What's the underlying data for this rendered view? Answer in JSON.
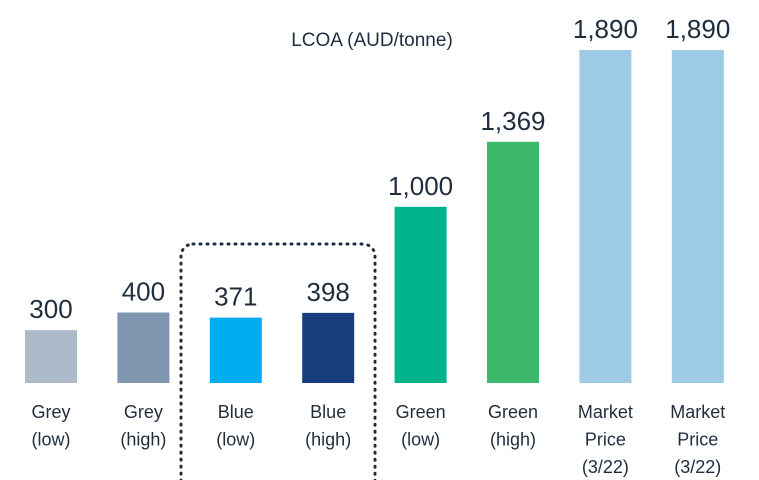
{
  "chart_data": {
    "type": "bar",
    "title": "LCOA (AUD/tonne)",
    "categories": [
      [
        "Grey",
        "(low)"
      ],
      [
        "Grey",
        "(high)"
      ],
      [
        "Blue",
        "(low)"
      ],
      [
        "Blue",
        "(high)"
      ],
      [
        "Green",
        "(low)"
      ],
      [
        "Green",
        "(high)"
      ],
      [
        "Market",
        "Price",
        "(3/22)"
      ],
      [
        "Market",
        "Price",
        "(3/22)"
      ]
    ],
    "values": [
      300,
      400,
      371,
      398,
      1000,
      1369,
      1890,
      1890
    ],
    "value_labels": [
      "300",
      "400",
      "371",
      "398",
      "1,000",
      "1,369",
      "1,890",
      "1,890"
    ],
    "colors": [
      "#adbac9",
      "#8096b0",
      "#00aeef",
      "#173d7d",
      "#00b38a",
      "#3cb96b",
      "#9dcbe6",
      "#9dcbe6"
    ]
  }
}
